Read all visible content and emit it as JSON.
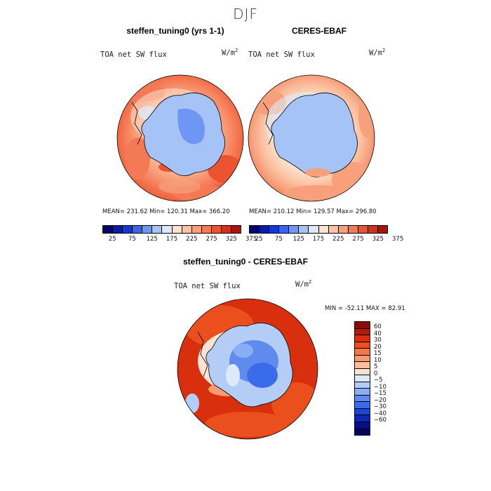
{
  "season": "DJF",
  "panels": [
    {
      "title": "steffen_tuning0 (yrs 1-1)",
      "variable": "TOA net SW flux",
      "units_base": "W/m",
      "units_exp": "2",
      "stats": "MEAN= 231.62   Min= 120.31   Max= 366.20"
    },
    {
      "title": "CERES-EBAF",
      "variable": "TOA net SW flux",
      "units_base": "W/m",
      "units_exp": "2",
      "stats": "MEAN= 210.12   Min= 129.57   Max= 296.80"
    }
  ],
  "diff": {
    "title": "steffen_tuning0 - CERES-EBAF",
    "variable": "TOA net SW flux",
    "units_base": "W/m",
    "units_exp": "2",
    "stats": "MIN = -52.11  MAX =  82.91"
  },
  "colorbar_top": {
    "colors": [
      "#08006b",
      "#0b1aa8",
      "#1238d8",
      "#3b63ee",
      "#6f95f5",
      "#a6c3f8",
      "#dde9fb",
      "#fde3d0",
      "#fbc3a3",
      "#f8a07c",
      "#f47a55",
      "#ec5431",
      "#d7301b",
      "#a8150c"
    ],
    "labels": [
      "25",
      "75",
      "125",
      "175",
      "225",
      "275",
      "325",
      "375"
    ]
  },
  "colorbar_diff": {
    "colors": [
      "#8c0a04",
      "#b41a0a",
      "#d8300f",
      "#ec4f1e",
      "#f47548",
      "#f89a73",
      "#fbbf9e",
      "#fde2d2",
      "#ddeafb",
      "#b3cdf7",
      "#8aaef3",
      "#5f8bef",
      "#3a6be8",
      "#1c47d6",
      "#0d27b0",
      "#050f8a",
      "#02035c"
    ],
    "labels": [
      "60",
      "40",
      "30",
      "20",
      "15",
      "10",
      "5",
      "0",
      "−5",
      "−10",
      "−15",
      "−20",
      "−30",
      "−40",
      "−60"
    ]
  }
}
